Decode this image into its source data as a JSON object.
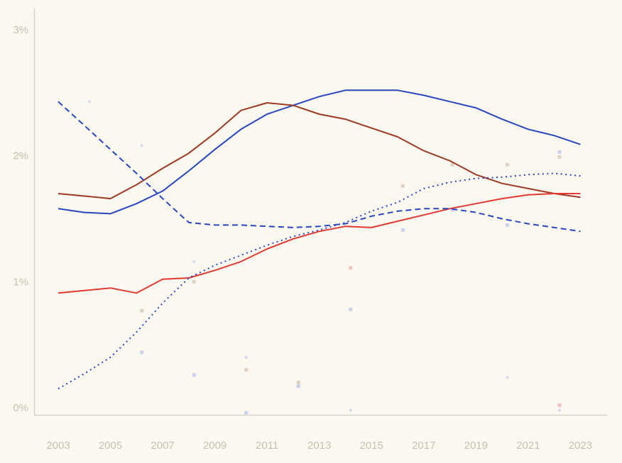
{
  "chart_data": {
    "type": "line",
    "title": "",
    "xlabel": "",
    "ylabel": "",
    "grid": false,
    "legend": "none",
    "x_range": [
      2003,
      2023
    ],
    "ylim": [
      0,
      3.17
    ],
    "x_tick_labels": [
      "2003",
      "2005",
      "2007",
      "2009",
      "2011",
      "2013",
      "2015",
      "2017",
      "2019",
      "2021",
      "2023"
    ],
    "x_tick_years": [
      2003,
      2005,
      2007,
      2009,
      2011,
      2013,
      2015,
      2017,
      2019,
      2021,
      2023
    ],
    "y_ticks": [
      {
        "label": "0%",
        "value": 0
      },
      {
        "label": "1%",
        "value": 1
      },
      {
        "label": "2%",
        "value": 2
      },
      {
        "label": "3%",
        "value": 3
      }
    ],
    "x": [
      2003,
      2004,
      2005,
      2006,
      2007,
      2008,
      2009,
      2010,
      2011,
      2012,
      2013,
      2014,
      2015,
      2016,
      2017,
      2018,
      2019,
      2020,
      2021,
      2022,
      2023
    ],
    "series": [
      {
        "name": "solid-blue",
        "style": "solid",
        "color": "#2946c3",
        "values": [
          1.58,
          1.55,
          1.54,
          1.62,
          1.72,
          1.88,
          2.05,
          2.21,
          2.33,
          2.4,
          2.47,
          2.52,
          2.52,
          2.52,
          2.48,
          2.43,
          2.38,
          2.29,
          2.21,
          2.16,
          2.09
        ]
      },
      {
        "name": "solid-dark-red",
        "style": "solid",
        "color": "#9e3a23",
        "values": [
          1.7,
          1.68,
          1.66,
          1.77,
          1.9,
          2.02,
          2.18,
          2.36,
          2.42,
          2.4,
          2.33,
          2.29,
          2.22,
          2.15,
          2.04,
          1.96,
          1.85,
          1.78,
          1.74,
          1.7,
          1.67
        ]
      },
      {
        "name": "solid-red",
        "style": "solid",
        "color": "#e23a33",
        "values": [
          0.91,
          0.93,
          0.95,
          0.91,
          1.02,
          1.03,
          1.09,
          1.16,
          1.26,
          1.34,
          1.4,
          1.44,
          1.43,
          1.48,
          1.53,
          1.58,
          1.62,
          1.66,
          1.69,
          1.7,
          1.7
        ]
      },
      {
        "name": "dashed-blue",
        "style": "dashed",
        "color": "#2946c3",
        "values": [
          2.43,
          2.24,
          2.05,
          1.86,
          1.66,
          1.47,
          1.45,
          1.45,
          1.44,
          1.43,
          1.44,
          1.46,
          1.52,
          1.56,
          1.58,
          1.58,
          1.55,
          1.5,
          1.46,
          1.43,
          1.4
        ]
      },
      {
        "name": "dotted-blue",
        "style": "dotted",
        "color": "#2946c3",
        "values": [
          0.15,
          0.27,
          0.4,
          0.6,
          0.83,
          1.03,
          1.13,
          1.21,
          1.29,
          1.36,
          1.41,
          1.47,
          1.56,
          1.63,
          1.74,
          1.79,
          1.82,
          1.83,
          1.85,
          1.86,
          1.84
        ]
      }
    ],
    "scatter": [
      {
        "x": 2004.2,
        "y": 2.43,
        "shape": "star",
        "color": "light_blue"
      },
      {
        "x": 2006.2,
        "y": 2.08,
        "shape": "star",
        "color": "light_blue"
      },
      {
        "x": 2006.2,
        "y": 0.77,
        "shape": "square",
        "color": "tan"
      },
      {
        "x": 2006.2,
        "y": 0.44,
        "shape": "square",
        "color": "light_blue"
      },
      {
        "x": 2008.2,
        "y": 1.16,
        "shape": "star",
        "color": "light_blue"
      },
      {
        "x": 2008.2,
        "y": 1.0,
        "shape": "square",
        "color": "tan"
      },
      {
        "x": 2008.2,
        "y": 0.26,
        "shape": "square",
        "color": "light_blue"
      },
      {
        "x": 2010.2,
        "y": 0.4,
        "shape": "star",
        "color": "light_blue"
      },
      {
        "x": 2010.2,
        "y": 0.3,
        "shape": "square",
        "color": "tan"
      },
      {
        "x": 2010.2,
        "y": -0.04,
        "shape": "square",
        "color": "light_blue"
      },
      {
        "x": 2012.2,
        "y": 0.2,
        "shape": "square",
        "color": "tan"
      },
      {
        "x": 2012.2,
        "y": 0.17,
        "shape": "square",
        "color": "light_blue"
      },
      {
        "x": 2014.2,
        "y": 1.11,
        "shape": "square",
        "color": "pink"
      },
      {
        "x": 2014.2,
        "y": 0.78,
        "shape": "square",
        "color": "light_blue"
      },
      {
        "x": 2014.2,
        "y": -0.02,
        "shape": "star",
        "color": "light_blue"
      },
      {
        "x": 2016.2,
        "y": 1.76,
        "shape": "square",
        "color": "tan"
      },
      {
        "x": 2016.2,
        "y": 1.41,
        "shape": "square",
        "color": "light_blue"
      },
      {
        "x": 2018.1,
        "y": 1.93,
        "shape": "square",
        "color": "tan"
      },
      {
        "x": 2018.1,
        "y": 1.57,
        "shape": "square",
        "color": "light_blue"
      },
      {
        "x": 2020.2,
        "y": 1.93,
        "shape": "square",
        "color": "tan"
      },
      {
        "x": 2020.2,
        "y": 1.45,
        "shape": "square",
        "color": "light_blue"
      },
      {
        "x": 2020.2,
        "y": 0.24,
        "shape": "star",
        "color": "light_blue"
      },
      {
        "x": 2022.2,
        "y": 2.03,
        "shape": "square",
        "color": "light_blue"
      },
      {
        "x": 2022.2,
        "y": 1.99,
        "shape": "square",
        "color": "tan"
      },
      {
        "x": 2022.2,
        "y": 0.02,
        "shape": "square",
        "color": "pink"
      },
      {
        "x": 2022.2,
        "y": -0.02,
        "shape": "star",
        "color": "light_blue"
      }
    ],
    "scatter_colors": {
      "light_blue": "#c8d1ee",
      "tan": "#ddd0c2",
      "pink": "#eec2bc"
    },
    "axis_color": "#d7d3c8",
    "tick_label_color": "#c6c1b4",
    "background_color": "#fbf8f0"
  }
}
